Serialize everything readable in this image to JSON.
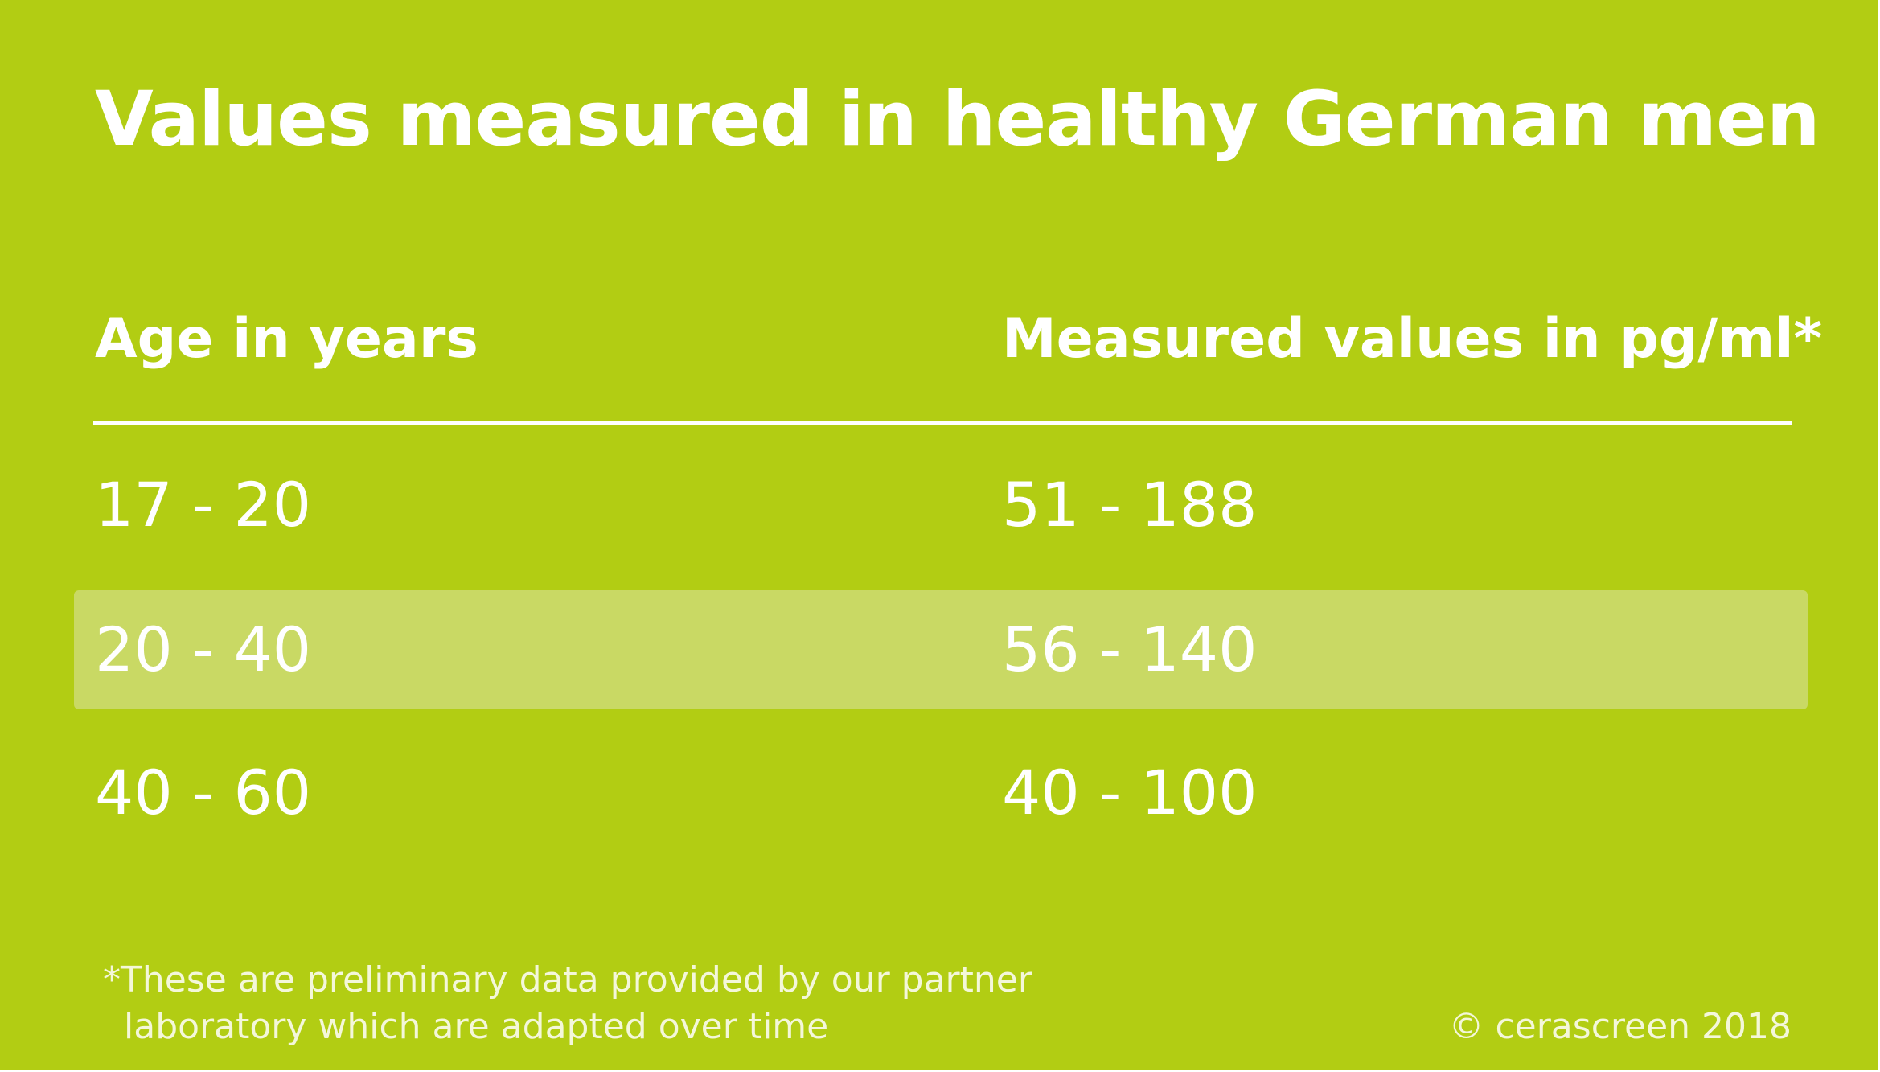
{
  "title": "Values measured in healthy German men",
  "colors": {
    "background": "#b2cd13",
    "text": "#ffffff",
    "highlight_row": "#c9d964"
  },
  "chart_data": {
    "type": "table",
    "columns": [
      "Age in years",
      "Measured values in pg/ml*"
    ],
    "rows": [
      [
        "17 - 20",
        "51 - 188"
      ],
      [
        "20 - 40",
        "56 - 140"
      ],
      [
        "40 - 60",
        "40 - 100"
      ]
    ],
    "highlighted_row": 1
  },
  "footnote": {
    "line1": "*These are preliminary data provided by our partner",
    "line2": "laboratory which are adapted over time"
  },
  "copyright": "© cerascreen 2018"
}
